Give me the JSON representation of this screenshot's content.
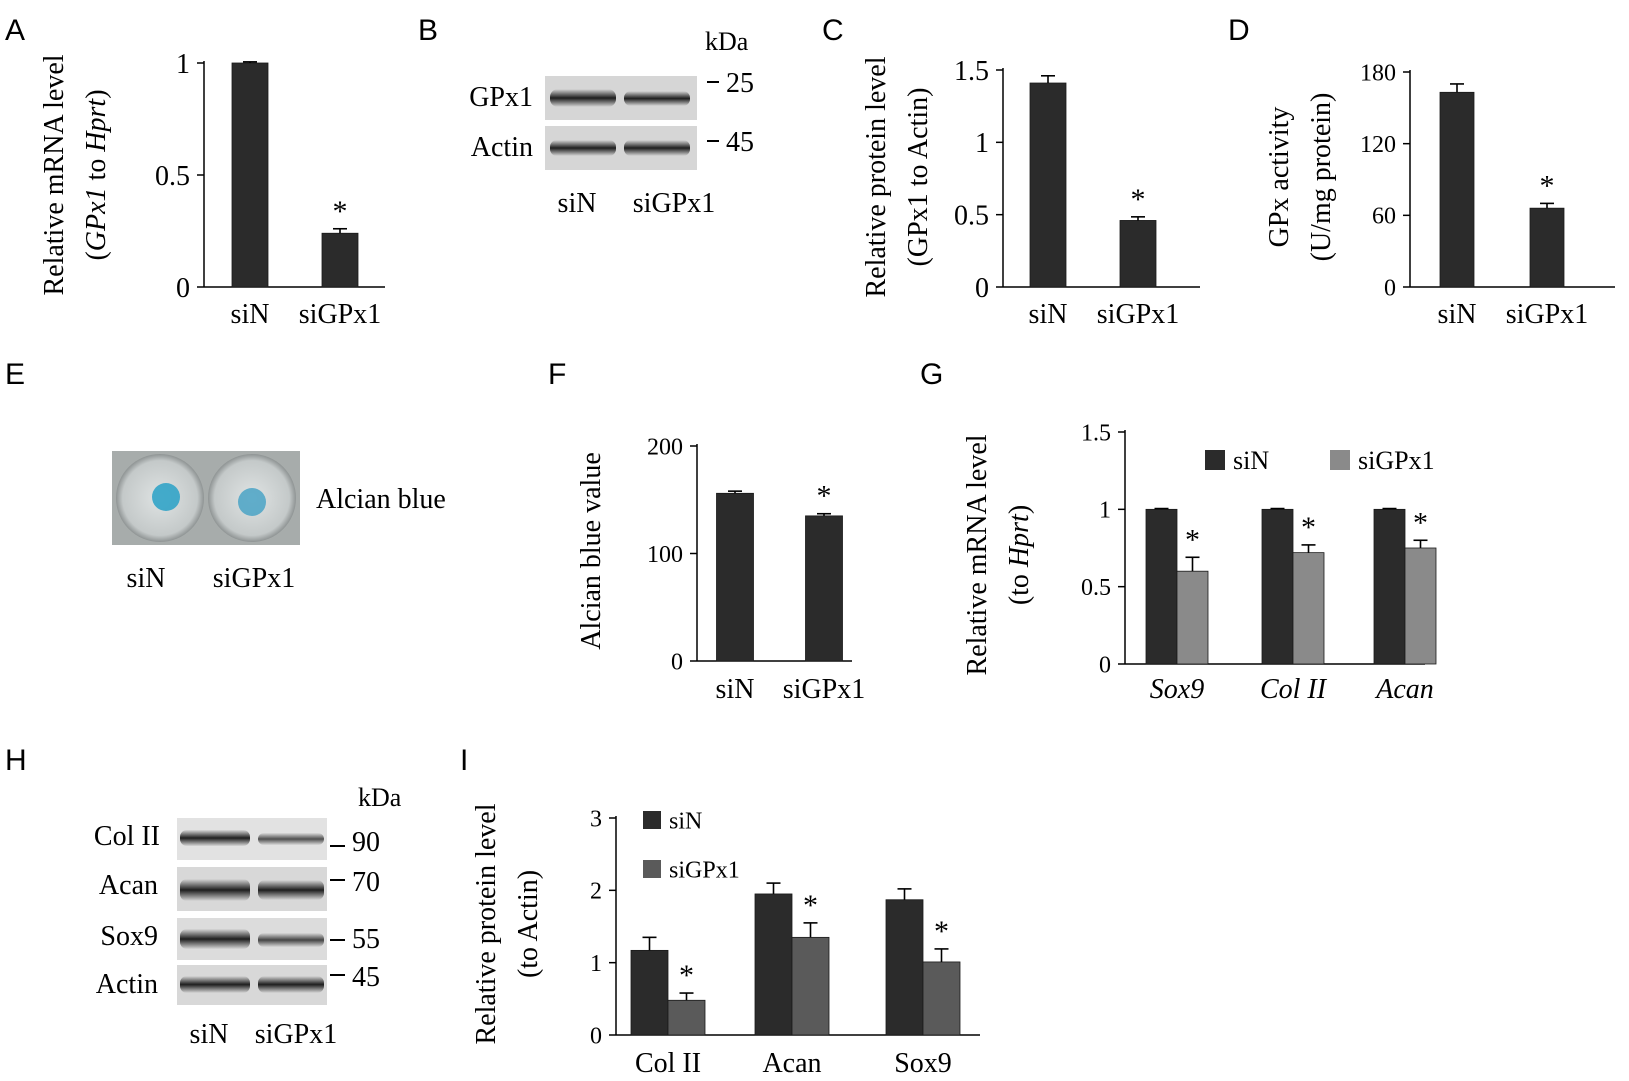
{
  "panel_letters": [
    "A",
    "B",
    "C",
    "D",
    "E",
    "F",
    "G",
    "H",
    "I"
  ],
  "colors": {
    "dark_bar": "#2b2b2b",
    "gray_bar": "#8a8a8a",
    "mid_bar": "#5a5a5a",
    "alcian_blue": "#3aa6c8"
  },
  "chart_data": [
    {
      "panel": "A",
      "type": "bar",
      "categories": [
        "siN",
        "siGPx1"
      ],
      "values": [
        1.0,
        0.24
      ],
      "errors": [
        0.005,
        0.02
      ],
      "ylim": [
        0,
        1
      ],
      "yticks": [
        0,
        0.5,
        1
      ],
      "ytick_labels": [
        "0",
        "0.5",
        "1"
      ],
      "ylabel_line1": "Relative mRNA level",
      "ylabel_line2": {
        "open": "(",
        "gene": "GPx1",
        "mid": " to ",
        "ref": "Hprt",
        "close": ")"
      },
      "significance": [
        "",
        "*"
      ]
    },
    {
      "panel": "C",
      "type": "bar",
      "categories": [
        "siN",
        "siGPx1"
      ],
      "values": [
        1.41,
        0.46
      ],
      "errors": [
        0.05,
        0.025
      ],
      "ylim": [
        0,
        1.5
      ],
      "yticks": [
        0,
        0.5,
        1,
        1.5
      ],
      "ytick_labels": [
        "0",
        "0.5",
        "1",
        "1.5"
      ],
      "ylabel_line1": "Relative protein level",
      "ylabel_line2": "(GPx1 to Actin)",
      "significance": [
        "",
        "*"
      ]
    },
    {
      "panel": "D",
      "type": "bar",
      "categories": [
        "siN",
        "siGPx1"
      ],
      "values": [
        163,
        66
      ],
      "errors": [
        7,
        4
      ],
      "ylim": [
        0,
        180
      ],
      "yticks": [
        0,
        60,
        120,
        180
      ],
      "ytick_labels": [
        "0",
        "60",
        "120",
        "180"
      ],
      "ylabel_line1": "GPx activity",
      "ylabel_line2": "(U/mg protein)",
      "significance": [
        "",
        "*"
      ]
    },
    {
      "panel": "F",
      "type": "bar",
      "categories": [
        "siN",
        "siGPx1"
      ],
      "values": [
        156,
        135
      ],
      "errors": [
        2,
        2
      ],
      "ylim": [
        0,
        200
      ],
      "yticks": [
        0,
        100,
        200
      ],
      "ytick_labels": [
        "0",
        "100",
        "200"
      ],
      "ylabel_line1": "Alcian blue value",
      "significance": [
        "",
        "*"
      ]
    },
    {
      "panel": "G",
      "type": "bar",
      "categories": [
        "Sox9",
        "Col II",
        "Acan"
      ],
      "series": [
        {
          "name": "siN",
          "values": [
            1.0,
            1.0,
            1.0
          ],
          "errors": [
            0.005,
            0.005,
            0.005
          ]
        },
        {
          "name": "siGPx1",
          "values": [
            0.6,
            0.72,
            0.75
          ],
          "errors": [
            0.09,
            0.05,
            0.05
          ]
        }
      ],
      "ylim": [
        0,
        1.5
      ],
      "yticks": [
        0,
        0.5,
        1,
        1.5
      ],
      "ytick_labels": [
        "0",
        "0.5",
        "1",
        "1.5"
      ],
      "ylabel_line1": "Relative mRNA level",
      "ylabel_line2": {
        "open": "(to ",
        "ref": "Hprt",
        "close": ")"
      },
      "legend": "top-right",
      "significance": [
        "*",
        "*",
        "*"
      ]
    },
    {
      "panel": "I",
      "type": "bar",
      "categories": [
        "Col II",
        "Acan",
        "Sox9"
      ],
      "series": [
        {
          "name": "siN",
          "values": [
            1.17,
            1.95,
            1.87
          ],
          "errors": [
            0.18,
            0.15,
            0.15
          ]
        },
        {
          "name": "siGPx1",
          "values": [
            0.48,
            1.35,
            1.01
          ],
          "errors": [
            0.1,
            0.2,
            0.18
          ]
        }
      ],
      "ylim": [
        0,
        3
      ],
      "yticks": [
        0,
        1,
        2,
        3
      ],
      "ytick_labels": [
        "0",
        "1",
        "2",
        "3"
      ],
      "ylabel_line1": "Relative protein level",
      "ylabel_line2": "(to Actin)",
      "legend": "top-left",
      "significance": [
        "*",
        "*",
        "*"
      ]
    }
  ],
  "blot_B": {
    "unit": "kDa",
    "bands": [
      {
        "label": "GPx1",
        "marker": "25"
      },
      {
        "label": "Actin",
        "marker": "45"
      }
    ],
    "lanes": [
      "siN",
      "siGPx1"
    ]
  },
  "blot_H": {
    "unit": "kDa",
    "bands": [
      {
        "label": "Col II",
        "marker": "90"
      },
      {
        "label": "Acan",
        "marker": "70"
      },
      {
        "label": "Sox9",
        "marker": "55"
      },
      {
        "label": "Actin",
        "marker": "45"
      }
    ],
    "lanes": [
      "siN",
      "siGPx1"
    ]
  },
  "panel_E": {
    "stain_label": "Alcian blue",
    "lanes": [
      "siN",
      "siGPx1"
    ]
  }
}
